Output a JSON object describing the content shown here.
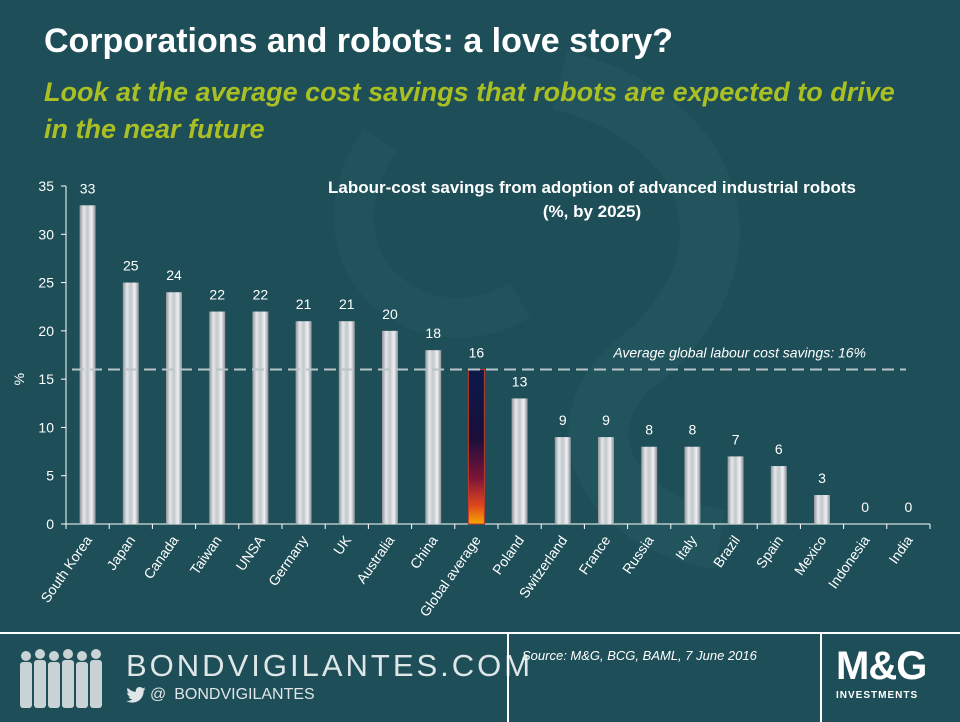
{
  "header": {
    "title": "Corporations and robots: a love story?",
    "subtitle": "Look at the average cost savings that robots are expected to drive in the near future"
  },
  "chart_data": {
    "type": "bar",
    "title_lines": [
      "Labour-cost savings from adoption of advanced industrial robots",
      "(%, by 2025)"
    ],
    "ylabel": "%",
    "ylim": [
      0,
      35
    ],
    "yticks": [
      0,
      5,
      10,
      15,
      20,
      25,
      30,
      35
    ],
    "categories": [
      "South Korea",
      "Japan",
      "Canada",
      "Taiwan",
      "UNSA",
      "Germany",
      "UK",
      "Australia",
      "China",
      "Global average",
      "Poland",
      "Switzerland",
      "France",
      "Russia",
      "Italy",
      "Brazil",
      "Spain",
      "Mexico",
      "Indonesia",
      "India"
    ],
    "values": [
      33,
      25,
      24,
      22,
      22,
      21,
      21,
      20,
      18,
      16,
      13,
      9,
      9,
      8,
      8,
      7,
      6,
      3,
      0,
      0
    ],
    "data_labels": [
      "33",
      "25",
      "24",
      "22",
      "22",
      "21",
      "21",
      "20",
      "18",
      "16",
      "13",
      "9",
      "9",
      "8",
      "8",
      "7",
      "6",
      "3",
      "0",
      "0"
    ],
    "reference_line": {
      "value": 16,
      "label": "Average global labour cost savings: 16%",
      "style": "dashed"
    },
    "highlight_category": "Global average",
    "grid": false,
    "colors": {
      "bar_silver": "#c8ccd0",
      "highlight_top": "#0a1a4a",
      "highlight_bottom": "#f7a800",
      "axis": "#ffffff",
      "reference": "#b8c4c6"
    }
  },
  "footer": {
    "brand_url": "BONDVIGILANTES.COM",
    "twitter_handle": "BONDVIGILANTES",
    "at_symbol": "@",
    "source": "Source: M&G, BCG, BAML, 7 June 2016",
    "logo_text": "M&G",
    "logo_subtext": "INVESTMENTS",
    "icons": [
      "people-silhouettes-icon",
      "twitter-bird-icon"
    ]
  }
}
